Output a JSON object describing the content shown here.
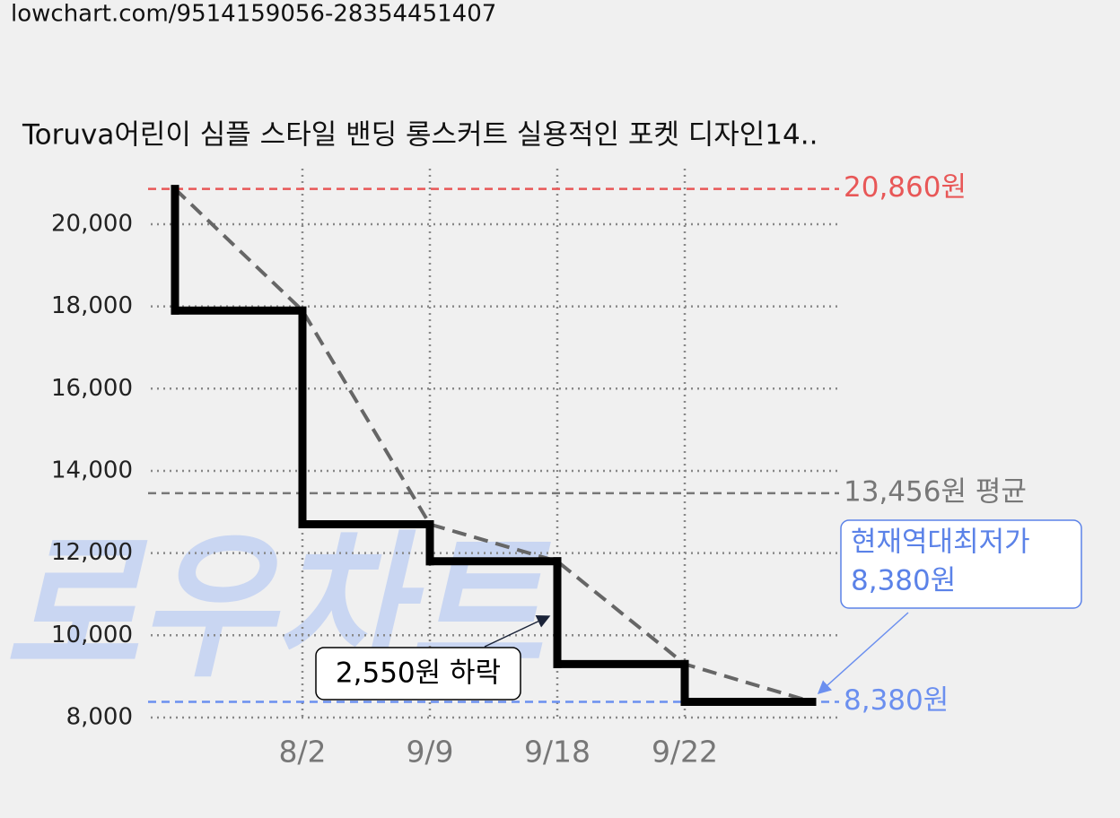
{
  "url": "lowchart.com/9514159056-28354451407",
  "watermark": "로우차트",
  "chart_data": {
    "type": "step",
    "title": "Toruva어린이 심플 스타일 밴딩 롱스커트 실용적인 포켓 디자인14..",
    "categories": [
      null,
      "8/2",
      "9/9",
      "9/18",
      "9/22",
      null
    ],
    "series": [
      {
        "color": "#000000",
        "trend_color": "#666666",
        "values": [
          20860,
          17900,
          12700,
          11800,
          9300,
          8380
        ]
      }
    ],
    "ylim": [
      7600,
      21300
    ],
    "yticks": [
      {
        "value": 8000,
        "label": "8,000"
      },
      {
        "value": 10000,
        "label": "10,000"
      },
      {
        "value": 12000,
        "label": "12,000"
      },
      {
        "value": 14000,
        "label": "14,000"
      },
      {
        "value": 16000,
        "label": "16,000"
      },
      {
        "value": 18000,
        "label": "18,000"
      },
      {
        "value": 20000,
        "label": "20,000"
      }
    ],
    "grid": true,
    "reference_lines": [
      {
        "value": 20860,
        "label": "20,860원",
        "color": "#e85757"
      },
      {
        "value": 13456,
        "label": "13,456원 평균",
        "color": "#777777"
      },
      {
        "value": 8380,
        "label": "8,380원",
        "color": "#6b8fef"
      }
    ],
    "annotations": [
      {
        "lines": [
          "현재역대최저가",
          "8,380원"
        ],
        "color": "#5b82e8"
      },
      {
        "lines": [
          "2,550원 하락"
        ],
        "color": "#000000"
      }
    ]
  }
}
